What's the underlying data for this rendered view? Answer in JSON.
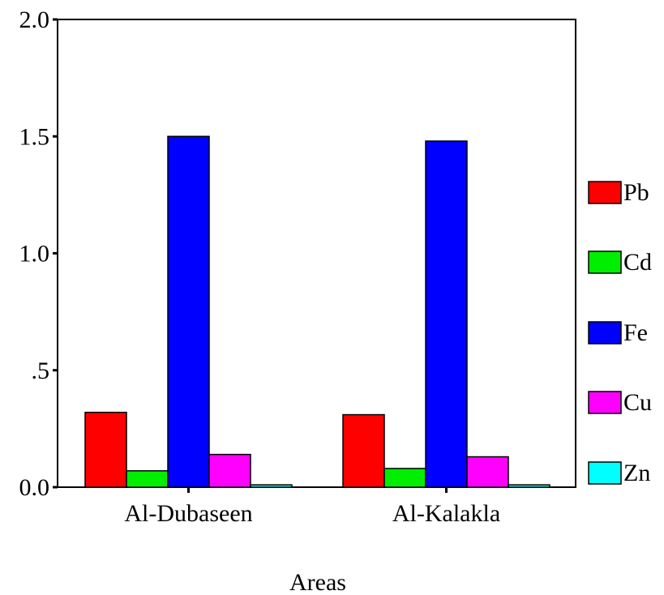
{
  "chart_data": {
    "type": "bar",
    "title": "",
    "xlabel": "Areas",
    "ylabel": "",
    "categories": [
      "Al-Dubaseen",
      "Al-Kalakla"
    ],
    "ylim": [
      0,
      2.0
    ],
    "yticks": [
      0.0,
      0.5,
      1.0,
      1.5,
      2.0
    ],
    "ytick_labels": [
      "0.0",
      ".5",
      "1.0",
      "1.5",
      "2.0"
    ],
    "grid": false,
    "legend_position": "right",
    "series": [
      {
        "name": "Pb",
        "color": "#ff0000",
        "values": [
          0.32,
          0.31
        ]
      },
      {
        "name": "Cd",
        "color": "#00ee00",
        "values": [
          0.07,
          0.08
        ]
      },
      {
        "name": "Fe",
        "color": "#0000ff",
        "values": [
          1.5,
          1.48
        ]
      },
      {
        "name": "Cu",
        "color": "#ff00ff",
        "values": [
          0.14,
          0.13
        ]
      },
      {
        "name": "Zn",
        "color": "#00ffff",
        "values": [
          0.01,
          0.01
        ]
      }
    ]
  }
}
